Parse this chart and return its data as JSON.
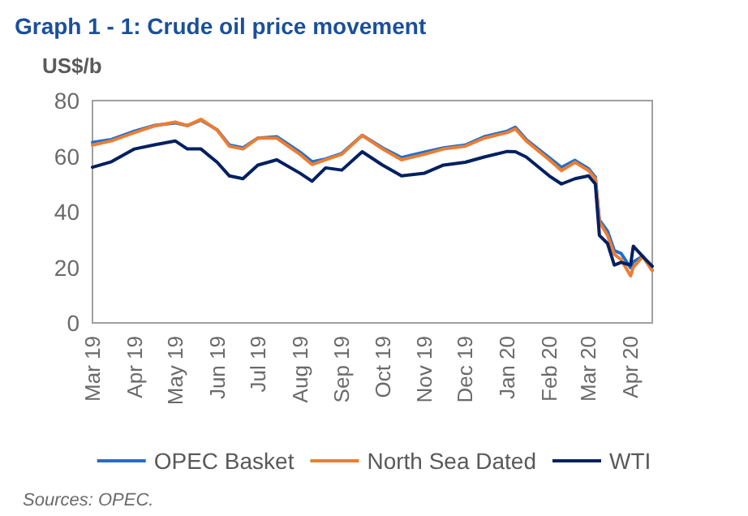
{
  "chart_data": {
    "type": "line",
    "title": "Graph 1 - 1: Crude oil price movement",
    "ylabel": "US$/b",
    "annotations": [
      "Sources: OPEC."
    ],
    "x": [
      "2019-03-01",
      "2019-03-15",
      "2019-04-01",
      "2019-04-15",
      "2019-05-01",
      "2019-05-10",
      "2019-05-20",
      "2019-06-01",
      "2019-06-10",
      "2019-06-20",
      "2019-07-01",
      "2019-07-15",
      "2019-08-01",
      "2019-08-10",
      "2019-08-20",
      "2019-09-01",
      "2019-09-16",
      "2019-10-01",
      "2019-10-15",
      "2019-11-01",
      "2019-11-15",
      "2019-12-01",
      "2019-12-15",
      "2020-01-01",
      "2020-01-07",
      "2020-01-15",
      "2020-02-01",
      "2020-02-10",
      "2020-02-20",
      "2020-03-01",
      "2020-03-06",
      "2020-03-09",
      "2020-03-15",
      "2020-03-20",
      "2020-03-25",
      "2020-04-01",
      "2020-04-03",
      "2020-04-10",
      "2020-04-17"
    ],
    "series": [
      {
        "name": "OPEC Basket",
        "color": "#1f6fd1",
        "values": [
          65,
          66,
          69,
          71,
          72,
          71,
          73,
          69.5,
          64,
          63,
          66.5,
          67,
          61.5,
          58,
          59,
          61,
          67.5,
          63,
          59.5,
          61.5,
          63,
          64,
          67,
          69,
          70.4,
          66,
          59.5,
          56,
          58.5,
          55.5,
          52.5,
          37,
          33,
          26,
          25,
          19.8,
          22,
          24,
          19
        ]
      },
      {
        "name": "North Sea Dated",
        "color": "#ed7d31",
        "values": [
          64,
          65.5,
          68.5,
          70.8,
          72.3,
          71,
          73.3,
          69.4,
          63.6,
          62.6,
          66.5,
          66.5,
          60.7,
          57,
          58.7,
          60.7,
          67.5,
          62.6,
          58.7,
          60.7,
          62.6,
          63.6,
          66.5,
          68.5,
          69.8,
          65.5,
          58.7,
          54.8,
          57.8,
          54.8,
          51.9,
          36.3,
          31.5,
          24.7,
          22.8,
          16.9,
          20,
          23.9,
          18.8
        ]
      },
      {
        "name": "WTI",
        "color": "#002060",
        "values": [
          56,
          58,
          62.6,
          64,
          65.5,
          62.6,
          62.6,
          57.8,
          52.9,
          51.9,
          56.8,
          58.7,
          53.9,
          51,
          55.8,
          55,
          61.6,
          56.8,
          52.9,
          53.9,
          56.8,
          57.8,
          59.7,
          61.7,
          61.6,
          59.7,
          52.9,
          50,
          51.9,
          52.9,
          50,
          31.5,
          28.6,
          20.8,
          21.8,
          20.8,
          27.6,
          23.9,
          20.4
        ]
      }
    ],
    "xlim": [
      "2019-03-01",
      "2020-04-17"
    ],
    "xticks": [
      {
        "value": "2019-03-01",
        "label": "Mar 19"
      },
      {
        "value": "2019-04-01",
        "label": "Apr 19"
      },
      {
        "value": "2019-05-01",
        "label": "May 19"
      },
      {
        "value": "2019-06-01",
        "label": "Jun 19"
      },
      {
        "value": "2019-07-01",
        "label": "Jul 19"
      },
      {
        "value": "2019-08-01",
        "label": "Aug 19"
      },
      {
        "value": "2019-09-01",
        "label": "Sep 19"
      },
      {
        "value": "2019-10-01",
        "label": "Oct 19"
      },
      {
        "value": "2019-11-01",
        "label": "Nov 19"
      },
      {
        "value": "2019-12-01",
        "label": "Dec 19"
      },
      {
        "value": "2020-01-01",
        "label": "Jan 20"
      },
      {
        "value": "2020-02-01",
        "label": "Feb 20"
      },
      {
        "value": "2020-03-01",
        "label": "Mar 20"
      },
      {
        "value": "2020-04-01",
        "label": "Apr 20"
      }
    ],
    "ylim": [
      0,
      80
    ],
    "yticks": [
      0,
      20,
      40,
      60,
      80
    ],
    "grid": false,
    "legend": "bottom",
    "marker": "none",
    "line_style": "solid"
  }
}
